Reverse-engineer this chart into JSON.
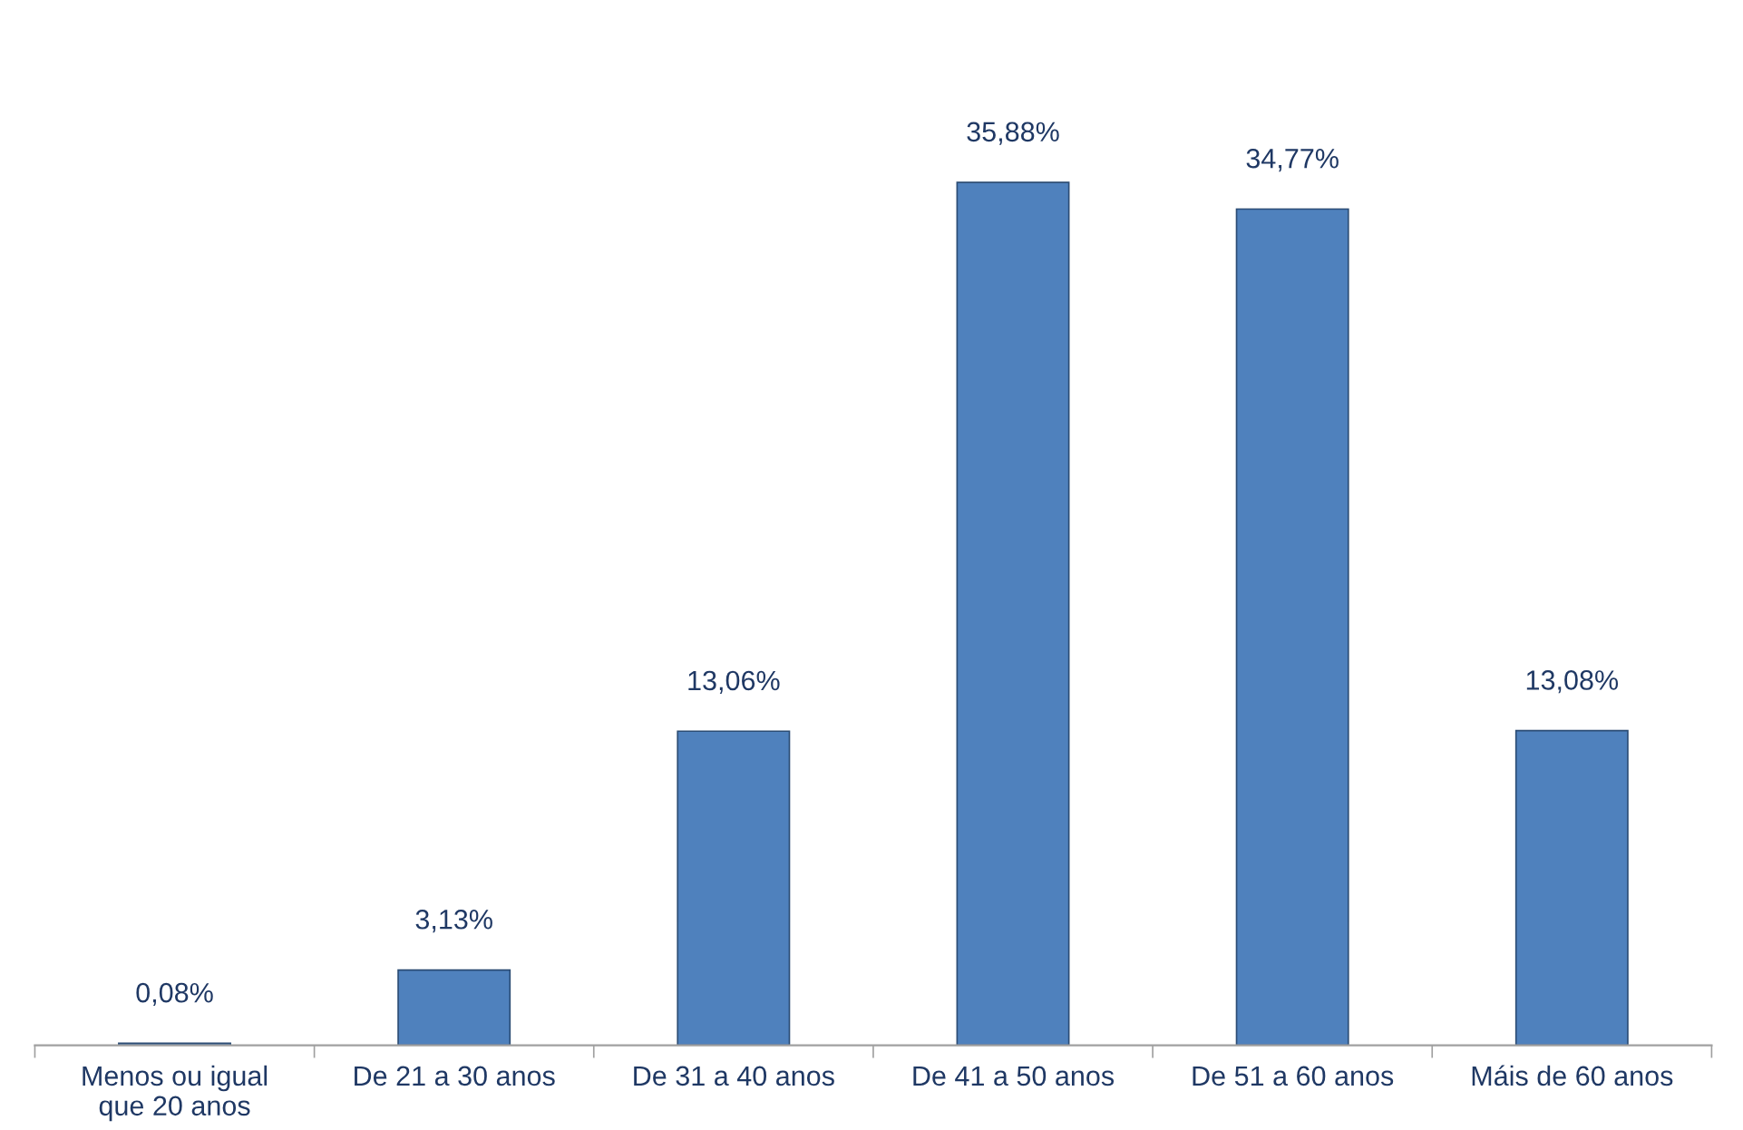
{
  "chart_data": {
    "type": "bar",
    "categories": [
      "Menos ou igual\nque 20 anos",
      "De 21 a 30 anos",
      "De 31 a 40 anos",
      "De 41 a 50 anos",
      "De 51 a 60 anos",
      "Máis de 60 anos"
    ],
    "values": [
      0.08,
      3.13,
      13.06,
      35.88,
      34.77,
      13.08
    ],
    "value_labels": [
      "0,08%",
      "3,13%",
      "13,06%",
      "35,88%",
      "34,77%",
      "13,08%"
    ],
    "color": "#4f81bd"
  }
}
